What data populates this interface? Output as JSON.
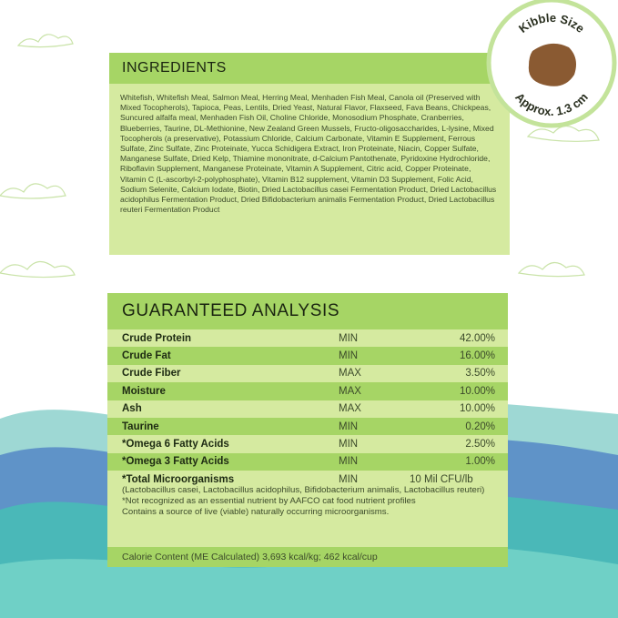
{
  "ingredients": {
    "title": "INGREDIENTS",
    "text": "Whitefish, Whitefish Meal, Salmon Meal, Herring Meal, Menhaden Fish Meal, Canola oil (Preserved with Mixed Tocopherols), Tapioca, Peas, Lentils, Dried Yeast, Natural Flavor, Flaxseed, Fava Beans, Chickpeas, Suncured alfalfa meal, Menhaden Fish Oil, Choline Chloride, Monosodium Phosphate, Cranberries, Blueberries, Taurine, DL-Methionine, New Zealand Green Mussels, Fructo-oligosaccharides, L-lysine, Mixed Tocopherols (a preservative), Potassium Chloride, Calcium Carbonate, Vitamin E Supplement, Ferrous Sulfate, Zinc Sulfate, Zinc Proteinate, Yucca Schidigera Extract, Iron Proteinate, Niacin, Copper Sulfate, Manganese Sulfate, Dried Kelp, Thiamine mononitrate, d-Calcium Pantothenate, Pyridoxine Hydrochloride, Riboflavin Supplement, Manganese Proteinate, Vitamin A Supplement, Citric acid, Copper Proteinate, Vitamin C (L-ascorbyl-2-polyphosphate), Vitamin B12 supplement, Vitamin D3 Supplement, Folic Acid, Sodium Selenite, Calcium Iodate, Biotin, Dried Lactobacillus casei Fermentation Product, Dried Lactobacillus acidophilus Fermentation Product, Dried Bifidobacterium animalis Fermentation Product, Dried Lactobacillus reuteri Fermentation Product"
  },
  "analysis": {
    "title": "GUARANTEED ANALYSIS",
    "rows": [
      {
        "name": "Crude Protein",
        "qualifier": "MIN",
        "value": "42.00%"
      },
      {
        "name": "Crude Fat",
        "qualifier": "MIN",
        "value": "16.00%"
      },
      {
        "name": "Crude Fiber",
        "qualifier": "MAX",
        "value": "3.50%"
      },
      {
        "name": "Moisture",
        "qualifier": "MAX",
        "value": "10.00%"
      },
      {
        "name": "Ash",
        "qualifier": "MAX",
        "value": "10.00%"
      },
      {
        "name": "Taurine",
        "qualifier": "MIN",
        "value": "0.20%"
      },
      {
        "name": "*Omega 6 Fatty Acids",
        "qualifier": "MIN",
        "value": "2.50%"
      },
      {
        "name": "*Omega 3 Fatty Acids",
        "qualifier": "MIN",
        "value": "1.00%"
      }
    ],
    "microorganisms": {
      "name": "*Total Microorganisms",
      "qualifier": "MIN",
      "value": "10 Mil CFU/lb",
      "strains": "(Lactobacillus casei, Lactobacillus acidophilus, Bifidobacterium animalis, Lactobacillus reuteri)",
      "note1": "*Not recognized as an essential nutrient by AAFCO cat food nutrient profiles",
      "note2": "Contains a source of live (viable) naturally occurring microorganisms."
    },
    "calorie": "Calorie Content (ME Calculated) 3,693 kcal/kg; 462 kcal/cup"
  },
  "kibble": {
    "label_top": "Kibble Size",
    "label_bottom": "Approx. 1.3 cm"
  },
  "colors": {
    "header_green": "#a6d565",
    "panel_green": "#d5eaa0",
    "teal": "#5cc4c0",
    "blue": "#3a72b0"
  }
}
